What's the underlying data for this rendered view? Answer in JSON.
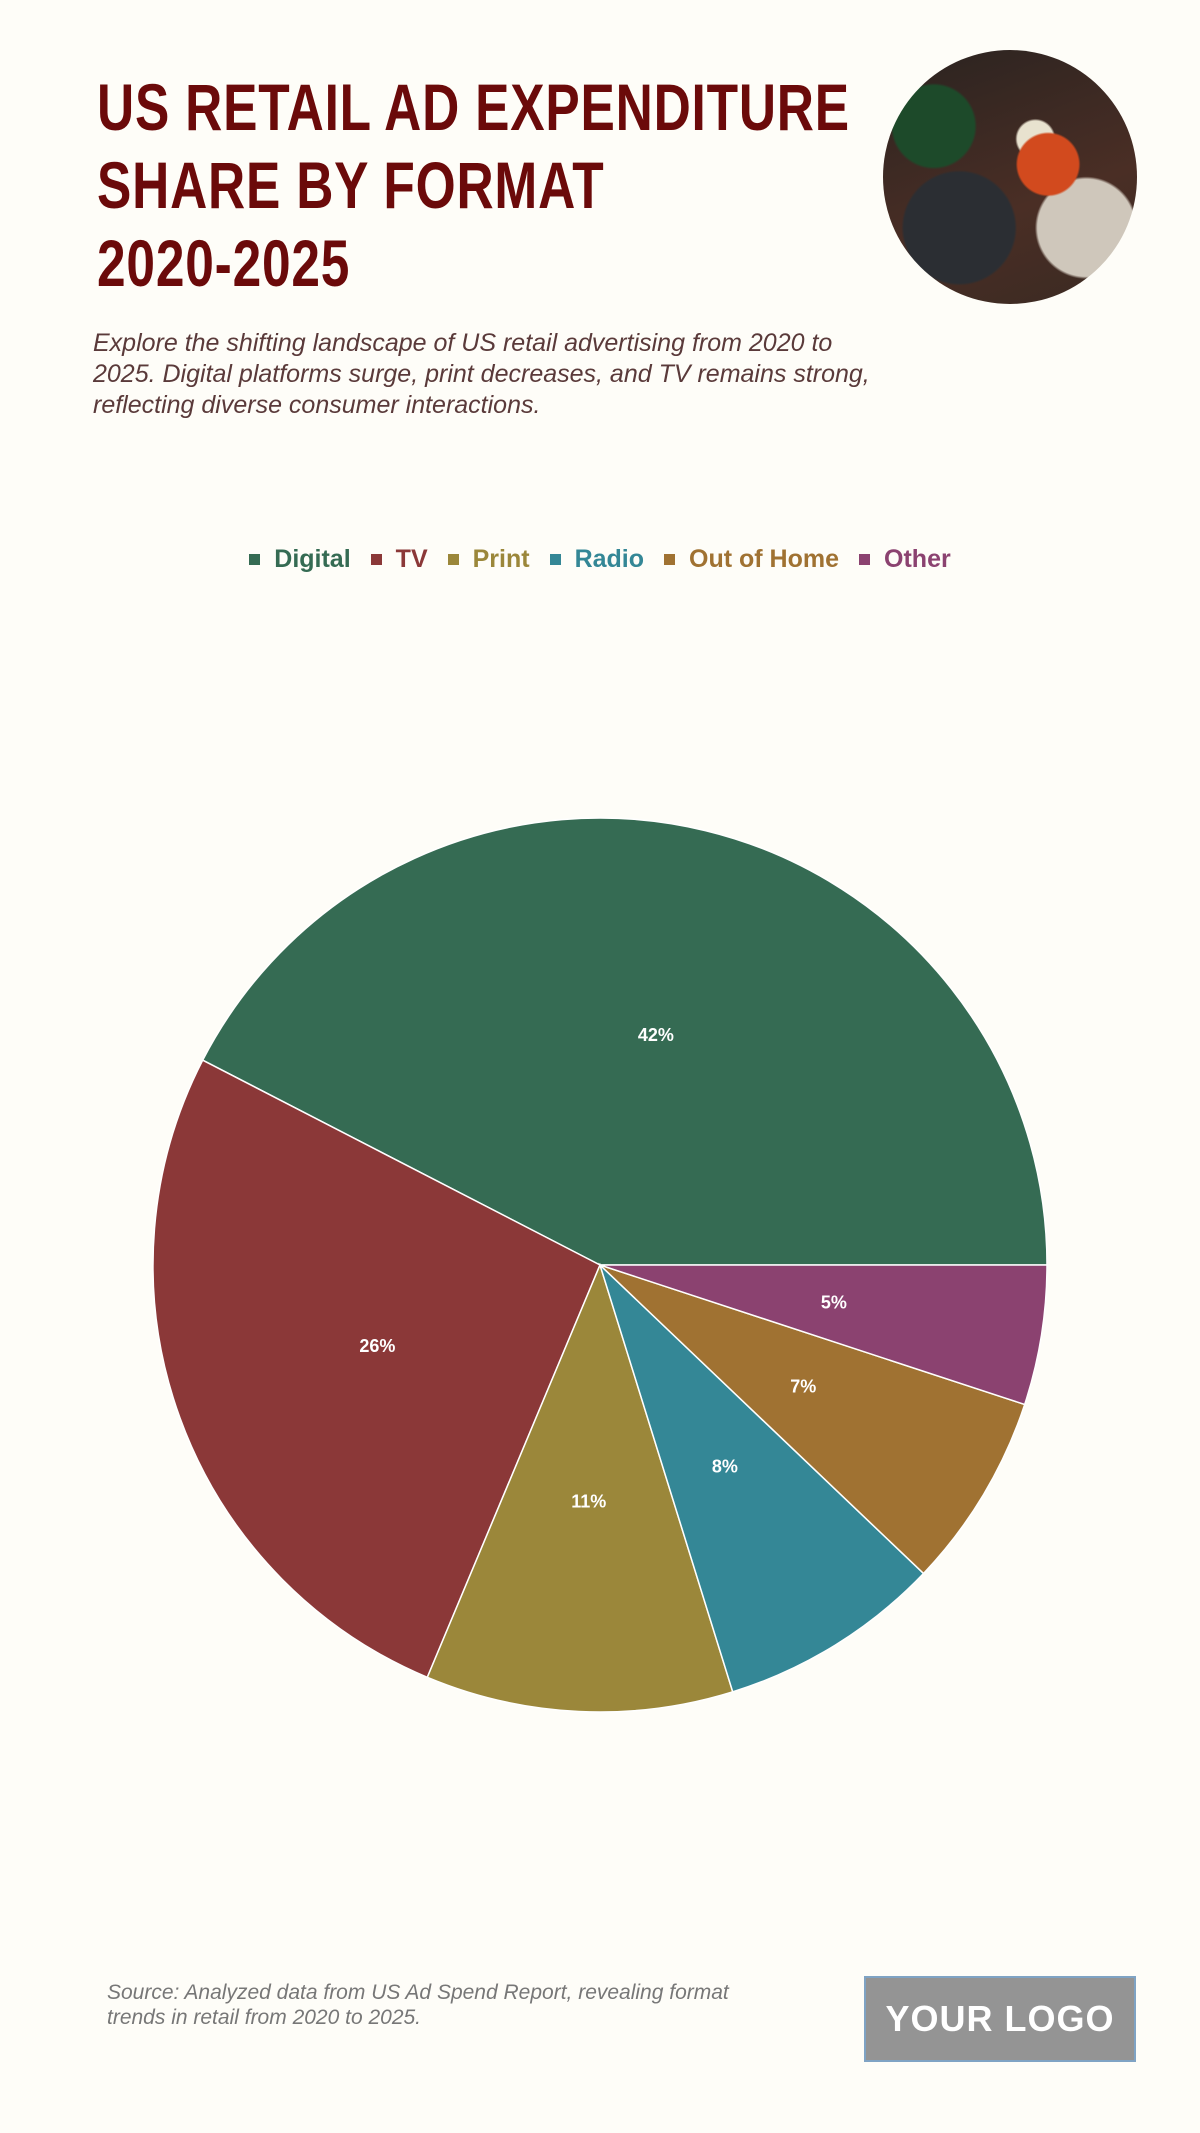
{
  "header": {
    "title_lines": [
      "US RETAIL AD EXPENDITURE",
      "SHARE BY FORMAT",
      "2020-2025"
    ],
    "subtitle": "Explore the shifting landscape of US retail advertising from 2020 to 2025. Digital platforms surge, print decreases, and TV remains strong, reflecting diverse consumer interactions."
  },
  "chart_data": {
    "type": "pie",
    "categories": [
      "Digital",
      "TV",
      "Print",
      "Radio",
      "Out of Home",
      "Other"
    ],
    "values": [
      42,
      26,
      11,
      8,
      7,
      5
    ],
    "labels": [
      "42%",
      "26%",
      "11%",
      "8%",
      "7%",
      "5%"
    ],
    "colors": [
      "#356B53",
      "#8B3838",
      "#9B873A",
      "#348796",
      "#A07232",
      "#8B4270"
    ],
    "legend_position": "top",
    "start_angle": "east, counterclockwise"
  },
  "footer": {
    "source": "Source: Analyzed data from US Ad Spend Report, revealing format trends in retail from 2020 to 2025.",
    "logo": "YOUR LOGO"
  }
}
